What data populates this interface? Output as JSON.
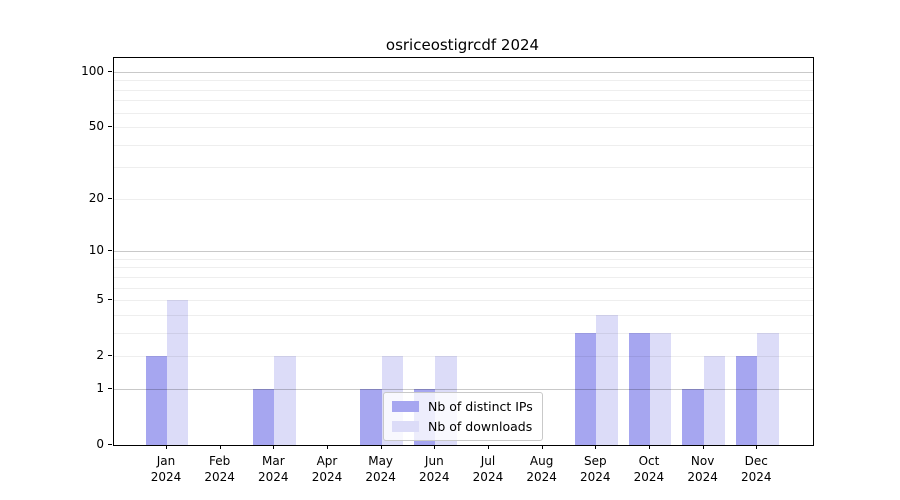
{
  "title": "osriceostigrcdf 2024",
  "chart_data": {
    "type": "bar",
    "title": "osriceostigrcdf 2024",
    "x": {
      "categories": [
        "Jan",
        "Feb",
        "Mar",
        "Apr",
        "May",
        "Jun",
        "Jul",
        "Aug",
        "Sep",
        "Oct",
        "Nov",
        "Dec"
      ],
      "year_label": "2024"
    },
    "series": [
      {
        "name": "Nb of distinct IPs",
        "color": "#a6a6f0",
        "values": [
          2,
          0,
          1,
          0,
          1,
          1,
          0,
          0,
          3,
          3,
          1,
          2
        ]
      },
      {
        "name": "Nb of downloads",
        "color": "#dcdcf8",
        "values": [
          5,
          0,
          2,
          0,
          2,
          2,
          0,
          0,
          4,
          3,
          2,
          3
        ]
      }
    ],
    "y_axis": {
      "scale": "log10(1+x)",
      "tick_labels": [
        "100",
        "50",
        "20",
        "10",
        "5",
        "2",
        "1",
        "0"
      ],
      "tick_values": [
        100,
        50,
        20,
        10,
        5,
        2,
        1,
        0
      ],
      "range_max": 118,
      "minor_gridlines": [
        2,
        3,
        4,
        5,
        6,
        7,
        8,
        9,
        20,
        30,
        40,
        50,
        60,
        70,
        80,
        90
      ],
      "major_gridlines": [
        1,
        10,
        100
      ]
    },
    "legend": {
      "position": "lower center-right"
    },
    "grid": true,
    "colors": {
      "minor_grid": "rgba(0,0,0,0.065)",
      "major_grid": "rgba(0,0,0,0.21)",
      "axis": "#000000",
      "background": "#ffffff"
    }
  }
}
